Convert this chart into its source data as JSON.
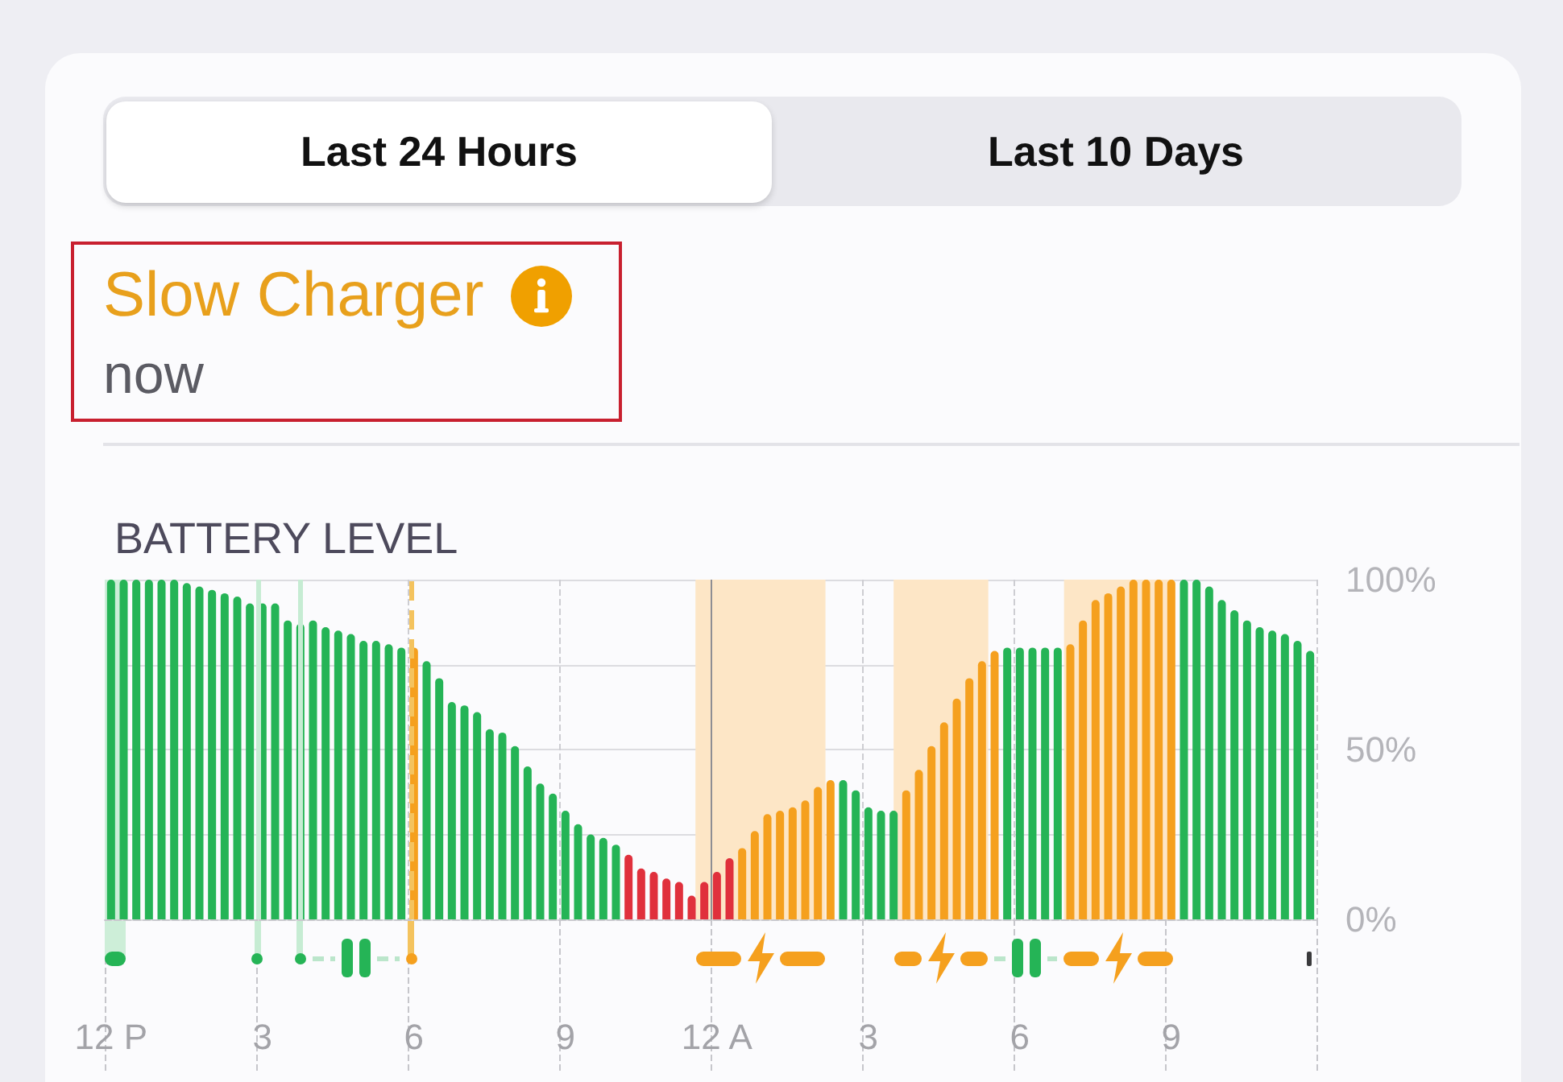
{
  "chart_data": {
    "type": "bar",
    "title": "BATTERY LEVEL",
    "annotations": [
      "Last 24 Hours",
      "Last 10 Days",
      "Slow Charger",
      "now"
    ],
    "categories": [
      "12 P",
      null,
      null,
      null,
      null,
      null,
      null,
      null,
      null,
      null,
      null,
      null,
      "3",
      null,
      null,
      null,
      null,
      null,
      null,
      null,
      null,
      null,
      null,
      null,
      "6",
      null,
      null,
      null,
      null,
      null,
      null,
      null,
      null,
      null,
      null,
      null,
      "9",
      null,
      null,
      null,
      null,
      null,
      null,
      null,
      null,
      null,
      null,
      null,
      "12 A",
      null,
      null,
      null,
      null,
      null,
      null,
      null,
      null,
      null,
      null,
      null,
      "3",
      null,
      null,
      null,
      null,
      null,
      null,
      null,
      null,
      null,
      null,
      null,
      "6",
      null,
      null,
      null,
      null,
      null,
      null,
      null,
      null,
      null,
      null,
      null,
      "9",
      null,
      null,
      null,
      null,
      null,
      null,
      null,
      null,
      null,
      null,
      null
    ],
    "values": [
      100,
      100,
      100,
      100,
      100,
      100,
      99,
      98,
      97,
      96,
      95,
      93,
      93,
      93,
      88,
      87,
      88,
      86,
      85,
      84,
      82,
      82,
      81,
      80,
      80,
      76,
      71,
      64,
      63,
      61,
      56,
      55,
      51,
      45,
      40,
      37,
      32,
      28,
      25,
      24,
      22,
      19,
      15,
      14,
      12,
      11,
      7,
      11,
      14,
      18,
      21,
      26,
      31,
      32,
      33,
      35,
      39,
      41,
      41,
      38,
      33,
      32,
      32,
      38,
      44,
      51,
      58,
      65,
      71,
      76,
      79,
      80,
      80,
      80,
      80,
      80,
      81,
      88,
      94,
      96,
      98,
      100,
      100,
      100,
      100,
      100,
      100,
      98,
      94,
      91,
      88,
      86,
      85,
      84,
      82,
      79
    ],
    "colors": [
      "#25b456",
      "#25b456",
      "#25b456",
      "#25b456",
      "#25b456",
      "#25b456",
      "#25b456",
      "#25b456",
      "#25b456",
      "#25b456",
      "#25b456",
      "#25b456",
      "#25b456",
      "#25b456",
      "#25b456",
      "#25b456",
      "#25b456",
      "#25b456",
      "#25b456",
      "#25b456",
      "#25b456",
      "#25b456",
      "#25b456",
      "#25b456",
      "#f5a01e",
      "#25b456",
      "#25b456",
      "#25b456",
      "#25b456",
      "#25b456",
      "#25b456",
      "#25b456",
      "#25b456",
      "#25b456",
      "#25b456",
      "#25b456",
      "#25b456",
      "#25b456",
      "#25b456",
      "#25b456",
      "#25b456",
      "#e0303c",
      "#e0303c",
      "#e0303c",
      "#e0303c",
      "#e0303c",
      "#e0303c",
      "#e0303c",
      "#e0303c",
      "#e0303c",
      "#f5a01e",
      "#f5a01e",
      "#f5a01e",
      "#f5a01e",
      "#f5a01e",
      "#f5a01e",
      "#f5a01e",
      "#f5a01e",
      "#25b456",
      "#25b456",
      "#25b456",
      "#25b456",
      "#25b456",
      "#f5a01e",
      "#f5a01e",
      "#f5a01e",
      "#f5a01e",
      "#f5a01e",
      "#f5a01e",
      "#f5a01e",
      "#f5a01e",
      "#25b456",
      "#25b456",
      "#25b456",
      "#25b456",
      "#25b456",
      "#f5a01e",
      "#f5a01e",
      "#f5a01e",
      "#f5a01e",
      "#f5a01e",
      "#f5a01e",
      "#f5a01e",
      "#f5a01e",
      "#f5a01e",
      "#25b456",
      "#25b456",
      "#25b456",
      "#25b456",
      "#25b456",
      "#25b456",
      "#25b456",
      "#25b456",
      "#25b456",
      "#25b456",
      "#25b456"
    ],
    "ylim": [
      0,
      100
    ],
    "yticks": [
      {
        "value": 0,
        "label": "0%"
      },
      {
        "value": 25,
        "label": null
      },
      {
        "value": 50,
        "label": "50%"
      },
      {
        "value": 75,
        "label": null
      },
      {
        "value": 100,
        "label": "100%"
      }
    ],
    "grid": true
  }
}
